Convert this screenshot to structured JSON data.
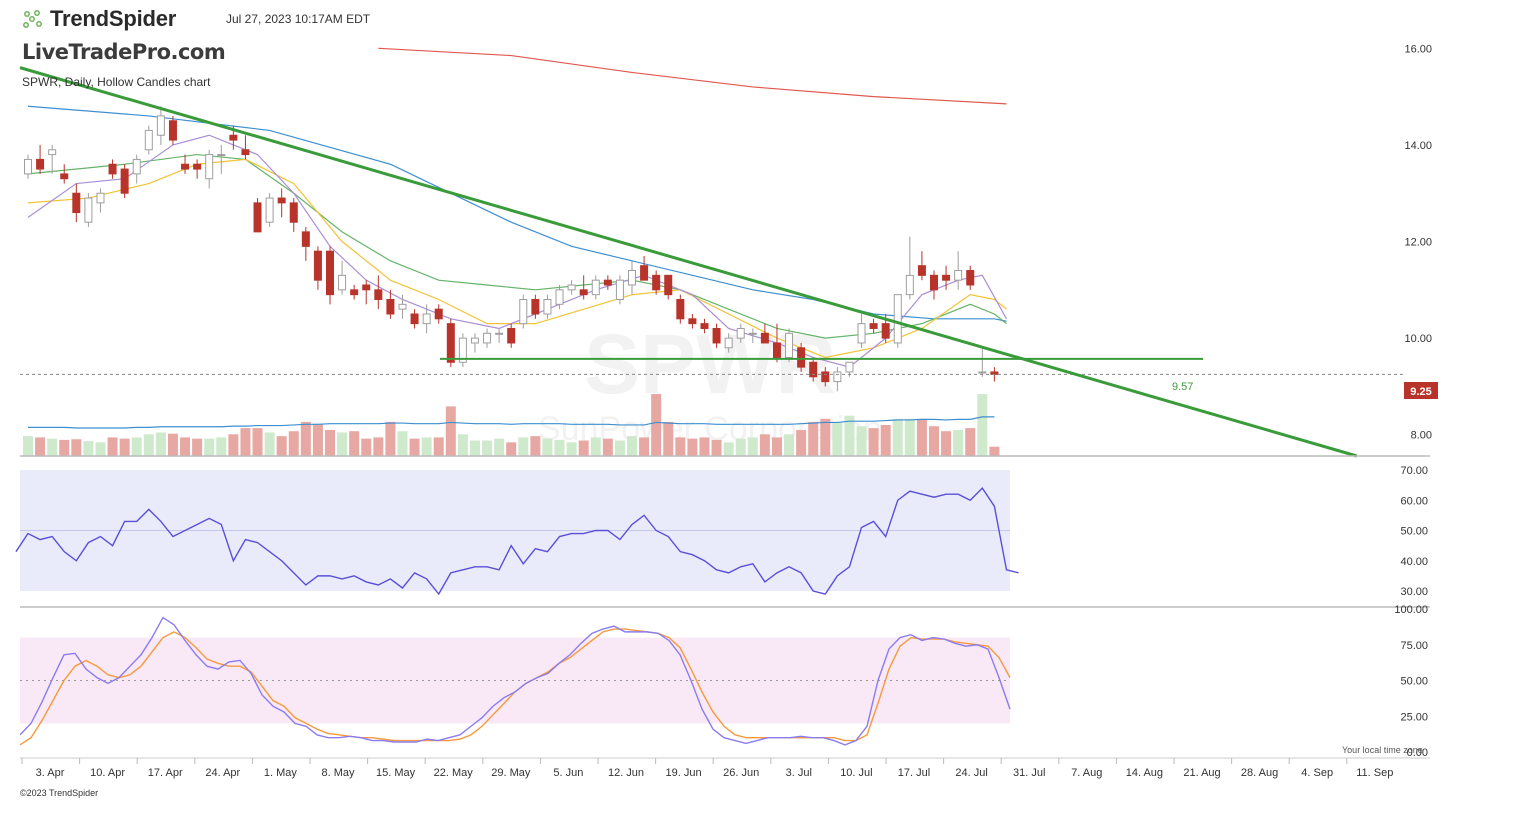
{
  "header": {
    "app_name": "TrendSpider",
    "datetime": "Jul 27, 2023 10:17AM EDT",
    "watermark": "LiveTradePro.com",
    "chart_description": "SPWR, Daily, Hollow Candles chart",
    "symbol_watermark": "SPWR",
    "company_watermark": "SunPower Corporation"
  },
  "footer": {
    "copyright": "©2023 TrendSpider",
    "timezone_note": "Your local time zone"
  },
  "colors": {
    "up": "#9e9e9e",
    "down": "#b8342a",
    "vol_up": "#cfe9cc",
    "vol_down": "#e7a8a3",
    "ma_red": "#e0584e",
    "ma_blue": "#3d8fd1",
    "ma_green": "#66b36a",
    "ma_yellow": "#f2c335",
    "ma_purple": "#a98fd6",
    "trendline": "#3a9b3a",
    "rsi_line": "#5a4fd8",
    "stoch_k": "#8b7cf0",
    "stoch_d": "#f59a3c",
    "rsi_band": "#e9ebfa",
    "stoch_band": "#f9e8f5",
    "price_badge": "#b8342a"
  },
  "chart_data": [
    {
      "type": "candlestick",
      "title": "SPWR, Daily, Hollow Candles chart",
      "x_ticks": [
        "3. Apr",
        "10. Apr",
        "17. Apr",
        "24. Apr",
        "1. May",
        "8. May",
        "15. May",
        "22. May",
        "29. May",
        "5. Jun",
        "12. Jun",
        "19. Jun",
        "26. Jun",
        "3. Jul",
        "10. Jul",
        "17. Jul",
        "24. Jul",
        "31. Jul",
        "7. Aug",
        "14. Aug",
        "21. Aug",
        "28. Aug",
        "4. Sep",
        "11. Sep"
      ],
      "y_ticks": [
        "16.00",
        "14.00",
        "12.00",
        "10.00",
        "8.00"
      ],
      "y_range": [
        7.56,
        17.0
      ],
      "current_price": "9.25",
      "support_level": 9.57,
      "support_label": "9.57",
      "candles": [
        [
          13.4,
          13.8,
          13.3,
          13.7
        ],
        [
          13.7,
          14.0,
          13.4,
          13.5
        ],
        [
          13.8,
          14.0,
          13.4,
          13.9
        ],
        [
          13.4,
          13.6,
          13.2,
          13.3
        ],
        [
          13.0,
          13.2,
          12.4,
          12.6
        ],
        [
          12.4,
          13.0,
          12.3,
          12.9
        ],
        [
          12.8,
          13.1,
          12.6,
          13.0
        ],
        [
          13.6,
          13.7,
          13.3,
          13.4
        ],
        [
          13.5,
          13.6,
          12.9,
          13.0
        ],
        [
          13.4,
          13.8,
          13.2,
          13.7
        ],
        [
          13.9,
          14.4,
          13.8,
          14.3
        ],
        [
          14.2,
          14.8,
          14.0,
          14.6
        ],
        [
          14.5,
          14.6,
          14.0,
          14.1
        ],
        [
          13.6,
          13.8,
          13.4,
          13.5
        ],
        [
          13.6,
          13.7,
          13.3,
          13.5
        ],
        [
          13.3,
          13.9,
          13.1,
          13.8
        ],
        [
          13.8,
          14.0,
          13.4,
          13.8
        ],
        [
          14.2,
          14.4,
          13.9,
          14.1
        ],
        [
          13.9,
          14.2,
          13.7,
          13.8
        ],
        [
          12.8,
          12.9,
          12.2,
          12.2
        ],
        [
          12.4,
          13.0,
          12.3,
          12.9
        ],
        [
          12.9,
          13.1,
          12.5,
          12.8
        ],
        [
          12.8,
          12.9,
          12.2,
          12.4
        ],
        [
          12.2,
          12.3,
          11.6,
          11.9
        ],
        [
          11.8,
          11.9,
          11.0,
          11.2
        ],
        [
          11.8,
          11.9,
          10.7,
          10.9
        ],
        [
          11.0,
          11.6,
          10.9,
          11.3
        ],
        [
          11.0,
          11.1,
          10.8,
          10.9
        ],
        [
          11.1,
          11.2,
          10.7,
          11.0
        ],
        [
          11.0,
          11.3,
          10.6,
          10.8
        ],
        [
          10.8,
          11.0,
          10.4,
          10.5
        ],
        [
          10.6,
          10.9,
          10.4,
          10.7
        ],
        [
          10.5,
          10.6,
          10.2,
          10.3
        ],
        [
          10.3,
          10.7,
          10.1,
          10.5
        ],
        [
          10.6,
          10.7,
          10.3,
          10.4
        ],
        [
          10.3,
          10.4,
          9.4,
          9.5
        ],
        [
          9.5,
          10.1,
          9.4,
          10.0
        ],
        [
          9.9,
          10.1,
          9.7,
          10.0
        ],
        [
          9.9,
          10.2,
          9.8,
          10.1
        ],
        [
          10.1,
          10.2,
          9.9,
          10.1
        ],
        [
          10.2,
          10.3,
          9.8,
          9.9
        ],
        [
          10.3,
          10.9,
          10.2,
          10.8
        ],
        [
          10.8,
          10.9,
          10.4,
          10.5
        ],
        [
          10.5,
          10.9,
          10.4,
          10.8
        ],
        [
          10.7,
          11.1,
          10.6,
          11.0
        ],
        [
          11.0,
          11.2,
          10.9,
          11.1
        ],
        [
          11.0,
          11.3,
          10.8,
          10.9
        ],
        [
          10.9,
          11.3,
          10.8,
          11.2
        ],
        [
          11.2,
          11.3,
          11.0,
          11.1
        ],
        [
          10.8,
          11.3,
          10.7,
          11.2
        ],
        [
          11.1,
          11.6,
          10.9,
          11.4
        ],
        [
          11.5,
          11.7,
          11.2,
          11.2
        ],
        [
          11.3,
          11.4,
          10.9,
          11.0
        ],
        [
          11.3,
          11.3,
          10.8,
          10.9
        ],
        [
          10.8,
          10.9,
          10.3,
          10.4
        ],
        [
          10.4,
          10.5,
          10.2,
          10.3
        ],
        [
          10.3,
          10.4,
          10.1,
          10.2
        ],
        [
          10.2,
          10.3,
          9.8,
          9.9
        ],
        [
          9.8,
          10.1,
          9.7,
          10.0
        ],
        [
          10.0,
          10.3,
          9.9,
          10.2
        ],
        [
          10.1,
          10.2,
          9.9,
          10.1
        ],
        [
          10.1,
          10.3,
          9.9,
          9.9
        ],
        [
          9.9,
          10.3,
          9.5,
          9.6
        ],
        [
          9.6,
          10.2,
          9.5,
          10.1
        ],
        [
          9.8,
          9.9,
          9.3,
          9.4
        ],
        [
          9.5,
          9.6,
          9.1,
          9.2
        ],
        [
          9.3,
          9.4,
          9.0,
          9.1
        ],
        [
          9.1,
          9.4,
          8.9,
          9.3
        ],
        [
          9.3,
          9.5,
          9.2,
          9.5
        ],
        [
          9.9,
          10.5,
          9.8,
          10.3
        ],
        [
          10.3,
          10.4,
          10.1,
          10.2
        ],
        [
          10.3,
          10.5,
          9.9,
          10.0
        ],
        [
          9.9,
          10.9,
          9.8,
          10.9
        ],
        [
          10.9,
          12.1,
          10.8,
          11.3
        ],
        [
          11.5,
          11.8,
          11.2,
          11.3
        ],
        [
          11.3,
          11.4,
          10.8,
          11.0
        ],
        [
          11.3,
          11.5,
          11.0,
          11.2
        ],
        [
          11.2,
          11.8,
          11.0,
          11.4
        ],
        [
          11.4,
          11.5,
          11.0,
          11.1
        ],
        [
          9.3,
          9.8,
          9.2,
          9.3
        ],
        [
          9.3,
          9.4,
          9.1,
          9.25
        ]
      ],
      "volume": [
        0.32,
        0.3,
        0.28,
        0.26,
        0.27,
        0.24,
        0.22,
        0.3,
        0.28,
        0.3,
        0.35,
        0.38,
        0.36,
        0.3,
        0.28,
        0.28,
        0.3,
        0.35,
        0.45,
        0.45,
        0.38,
        0.32,
        0.4,
        0.55,
        0.52,
        0.42,
        0.38,
        0.4,
        0.28,
        0.3,
        0.55,
        0.4,
        0.28,
        0.3,
        0.3,
        0.8,
        0.35,
        0.25,
        0.25,
        0.28,
        0.22,
        0.3,
        0.32,
        0.28,
        0.26,
        0.22,
        0.25,
        0.3,
        0.28,
        0.25,
        0.32,
        0.3,
        1.0,
        0.55,
        0.3,
        0.28,
        0.3,
        0.26,
        0.22,
        0.28,
        0.3,
        0.35,
        0.3,
        0.35,
        0.42,
        0.55,
        0.6,
        0.55,
        0.65,
        0.48,
        0.45,
        0.5,
        0.6,
        0.6,
        0.6,
        0.48,
        0.4,
        0.42,
        0.45,
        1.0,
        0.15
      ],
      "volume_ma": [
        0.3,
        0.3,
        0.3,
        0.3,
        0.29,
        0.29,
        0.29,
        0.29,
        0.29,
        0.3,
        0.3,
        0.31,
        0.31,
        0.31,
        0.31,
        0.31,
        0.31,
        0.32,
        0.32,
        0.33,
        0.33,
        0.33,
        0.34,
        0.35,
        0.35,
        0.36,
        0.36,
        0.36,
        0.36,
        0.36,
        0.37,
        0.37,
        0.36,
        0.36,
        0.36,
        0.38,
        0.37,
        0.36,
        0.36,
        0.36,
        0.35,
        0.36,
        0.36,
        0.36,
        0.36,
        0.35,
        0.35,
        0.35,
        0.35,
        0.34,
        0.34,
        0.34,
        0.38,
        0.37,
        0.36,
        0.36,
        0.36,
        0.35,
        0.35,
        0.35,
        0.35,
        0.35,
        0.35,
        0.35,
        0.36,
        0.37,
        0.38,
        0.38,
        0.4,
        0.4,
        0.4,
        0.41,
        0.42,
        0.42,
        0.43,
        0.43,
        0.42,
        0.43,
        0.43,
        0.47,
        0.47
      ],
      "ma200": [
        [
          29,
          16.0
        ],
        [
          40,
          15.85
        ],
        [
          50,
          15.5
        ],
        [
          60,
          15.2
        ],
        [
          70,
          15.0
        ],
        [
          81,
          14.85
        ]
      ],
      "ma50": [
        [
          0,
          14.8
        ],
        [
          10,
          14.6
        ],
        [
          20,
          14.3
        ],
        [
          30,
          13.6
        ],
        [
          35,
          13.0
        ],
        [
          40,
          12.4
        ],
        [
          45,
          11.9
        ],
        [
          50,
          11.6
        ],
        [
          55,
          11.3
        ],
        [
          60,
          11.0
        ],
        [
          65,
          10.8
        ],
        [
          70,
          10.5
        ],
        [
          75,
          10.4
        ],
        [
          80,
          10.4
        ],
        [
          81,
          10.35
        ]
      ],
      "ma20": [
        [
          0,
          13.4
        ],
        [
          8,
          13.6
        ],
        [
          14,
          13.8
        ],
        [
          18,
          13.7
        ],
        [
          22,
          13.0
        ],
        [
          26,
          12.2
        ],
        [
          30,
          11.6
        ],
        [
          34,
          11.2
        ],
        [
          38,
          11.1
        ],
        [
          42,
          11.0
        ],
        [
          46,
          11.1
        ],
        [
          50,
          11.2
        ],
        [
          54,
          11.0
        ],
        [
          58,
          10.6
        ],
        [
          62,
          10.2
        ],
        [
          66,
          10.0
        ],
        [
          70,
          10.1
        ],
        [
          74,
          10.3
        ],
        [
          78,
          10.7
        ],
        [
          80,
          10.5
        ],
        [
          81,
          10.3
        ]
      ],
      "ma10": [
        [
          0,
          12.8
        ],
        [
          5,
          12.9
        ],
        [
          10,
          13.2
        ],
        [
          14,
          13.6
        ],
        [
          18,
          13.7
        ],
        [
          22,
          13.2
        ],
        [
          26,
          12.0
        ],
        [
          30,
          11.2
        ],
        [
          34,
          10.8
        ],
        [
          38,
          10.3
        ],
        [
          42,
          10.3
        ],
        [
          46,
          10.6
        ],
        [
          50,
          10.9
        ],
        [
          54,
          11.0
        ],
        [
          58,
          10.5
        ],
        [
          62,
          10.0
        ],
        [
          66,
          9.6
        ],
        [
          70,
          9.8
        ],
        [
          74,
          10.2
        ],
        [
          78,
          10.9
        ],
        [
          80,
          10.8
        ],
        [
          81,
          10.6
        ]
      ],
      "ma5": [
        [
          0,
          12.5
        ],
        [
          4,
          13.2
        ],
        [
          8,
          13.3
        ],
        [
          12,
          14.0
        ],
        [
          15,
          14.2
        ],
        [
          19,
          13.8
        ],
        [
          22,
          13.0
        ],
        [
          25,
          11.9
        ],
        [
          28,
          11.2
        ],
        [
          31,
          10.8
        ],
        [
          35,
          10.4
        ],
        [
          39,
          10.2
        ],
        [
          43,
          10.6
        ],
        [
          47,
          11.0
        ],
        [
          51,
          11.3
        ],
        [
          55,
          10.9
        ],
        [
          58,
          10.2
        ],
        [
          62,
          9.9
        ],
        [
          65,
          9.6
        ],
        [
          68,
          9.4
        ],
        [
          71,
          10.0
        ],
        [
          74,
          10.9
        ],
        [
          77,
          11.2
        ],
        [
          79,
          11.3
        ],
        [
          81,
          10.4
        ]
      ],
      "trendline": [
        [
          0,
          15.6
        ],
        [
          110,
          7.56
        ]
      ]
    },
    {
      "type": "line",
      "name": "RSI",
      "y_ticks": [
        "70.00",
        "60.00",
        "50.00",
        "40.00",
        "30.00"
      ],
      "y_range": [
        28,
        72
      ],
      "band": [
        30,
        70
      ],
      "midline": 50,
      "values": [
        43,
        49,
        47,
        48,
        43,
        40,
        46,
        48,
        45,
        53,
        53,
        57,
        53,
        48,
        50,
        52,
        54,
        52,
        40,
        47,
        46,
        43,
        40,
        36,
        32,
        35,
        35,
        34,
        35,
        33,
        32,
        34,
        31,
        36,
        34,
        29,
        36,
        37,
        38,
        38,
        37,
        45,
        39,
        44,
        43,
        48,
        49,
        49,
        50,
        50,
        47,
        52,
        55,
        50,
        48,
        43,
        42,
        40,
        37,
        36,
        38,
        39,
        33,
        36,
        38,
        36,
        30,
        29,
        35,
        38,
        51,
        53,
        48,
        60,
        63,
        62,
        61,
        62,
        62,
        60,
        64,
        58,
        37,
        36
      ],
      "x_offset": -1
    },
    {
      "type": "line",
      "name": "Stochastic",
      "y_ticks": [
        "100.00",
        "75.00",
        "50.00",
        "25.00",
        "0.00"
      ],
      "y_range": [
        0,
        101
      ],
      "band": [
        20,
        80
      ],
      "midline": 50,
      "k": [
        12,
        20,
        35,
        52,
        68,
        69,
        58,
        52,
        48,
        52,
        60,
        68,
        80,
        94,
        89,
        78,
        68,
        60,
        58,
        63,
        64,
        55,
        40,
        32,
        28,
        20,
        18,
        12,
        10,
        10,
        11,
        10,
        8,
        8,
        7,
        7,
        7,
        9,
        8,
        10,
        12,
        18,
        24,
        32,
        38,
        42,
        48,
        52,
        55,
        62,
        68,
        76,
        83,
        86,
        88,
        84,
        84,
        84,
        83,
        78,
        68,
        50,
        30,
        16,
        10,
        8,
        6,
        8,
        10,
        10,
        10,
        11,
        10,
        10,
        8,
        5,
        8,
        18,
        50,
        72,
        80,
        82,
        78,
        80,
        79,
        76,
        74,
        75,
        72,
        52,
        30
      ],
      "d": [
        5,
        10,
        22,
        36,
        50,
        60,
        64,
        60,
        54,
        52,
        54,
        60,
        70,
        80,
        84,
        80,
        73,
        65,
        62,
        60,
        60,
        56,
        46,
        36,
        32,
        24,
        20,
        16,
        13,
        12,
        11,
        10,
        10,
        9,
        8,
        8,
        8,
        8,
        8,
        8,
        9,
        12,
        18,
        26,
        34,
        42,
        48,
        52,
        56,
        62,
        66,
        72,
        78,
        84,
        86,
        86,
        85,
        84,
        83,
        80,
        73,
        58,
        42,
        28,
        18,
        12,
        10,
        10,
        10,
        10,
        10,
        10,
        10,
        10,
        10,
        8,
        8,
        12,
        34,
        58,
        74,
        80,
        79,
        79,
        79,
        77,
        76,
        75,
        74,
        66,
        52
      ]
    }
  ]
}
